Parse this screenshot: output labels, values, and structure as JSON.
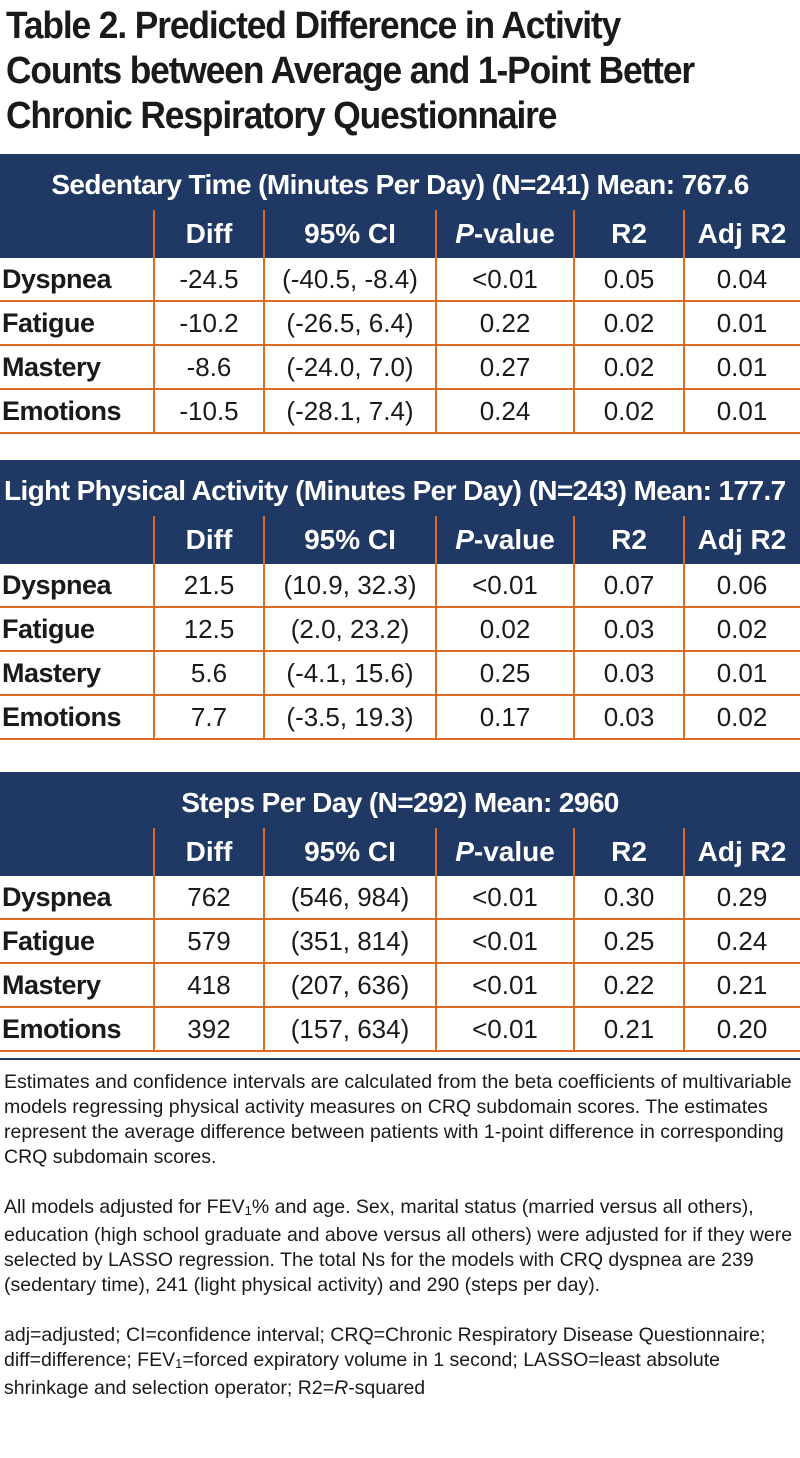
{
  "title": "Table 2. Predicted Difference in Activity Counts between Average and 1-Point Better Chronic Respiratory Questionnaire",
  "columns": {
    "diff": "Diff",
    "ci": "95% CI",
    "p_italic": "P",
    "p_rest": "-value",
    "r2": "R2",
    "adj_r2": "Adj R2"
  },
  "sections": [
    {
      "title": "Sedentary Time (Minutes Per Day) (N=241) Mean: 767.6",
      "rows": [
        {
          "label": "Dyspnea",
          "diff": "-24.5",
          "ci": "(-40.5, -8.4)",
          "p": "<0.01",
          "r2": "0.05",
          "adj_r2": "0.04"
        },
        {
          "label": "Fatigue",
          "diff": "-10.2",
          "ci": "(-26.5, 6.4)",
          "p": "0.22",
          "r2": "0.02",
          "adj_r2": "0.01"
        },
        {
          "label": "Mastery",
          "diff": "-8.6",
          "ci": "(-24.0, 7.0)",
          "p": "0.27",
          "r2": "0.02",
          "adj_r2": "0.01"
        },
        {
          "label": "Emotions",
          "diff": "-10.5",
          "ci": "(-28.1, 7.4)",
          "p": "0.24",
          "r2": "0.02",
          "adj_r2": "0.01"
        }
      ]
    },
    {
      "title": "Light Physical Activity (Minutes Per Day) (N=243) Mean: 177.7",
      "rows": [
        {
          "label": "Dyspnea",
          "diff": "21.5",
          "ci": "(10.9, 32.3)",
          "p": "<0.01",
          "r2": "0.07",
          "adj_r2": "0.06"
        },
        {
          "label": "Fatigue",
          "diff": "12.5",
          "ci": "(2.0, 23.2)",
          "p": "0.02",
          "r2": "0.03",
          "adj_r2": "0.02"
        },
        {
          "label": "Mastery",
          "diff": "5.6",
          "ci": "(-4.1, 15.6)",
          "p": "0.25",
          "r2": "0.03",
          "adj_r2": "0.01"
        },
        {
          "label": "Emotions",
          "diff": "7.7",
          "ci": "(-3.5, 19.3)",
          "p": "0.17",
          "r2": "0.03",
          "adj_r2": "0.02"
        }
      ]
    },
    {
      "title": "Steps Per Day (N=292) Mean: 2960",
      "rows": [
        {
          "label": "Dyspnea",
          "diff": "762",
          "ci": "(546, 984)",
          "p": "<0.01",
          "r2": "0.30",
          "adj_r2": "0.29"
        },
        {
          "label": "Fatigue",
          "diff": "579",
          "ci": "(351, 814)",
          "p": "<0.01",
          "r2": "0.25",
          "adj_r2": "0.24"
        },
        {
          "label": "Mastery",
          "diff": "418",
          "ci": "(207, 636)",
          "p": "<0.01",
          "r2": "0.22",
          "adj_r2": "0.21"
        },
        {
          "label": "Emotions",
          "diff": "392",
          "ci": "(157, 634)",
          "p": "<0.01",
          "r2": "0.21",
          "adj_r2": "0.20"
        }
      ]
    }
  ],
  "notes": {
    "note1": "Estimates and confidence intervals are calculated from the beta coefficients of multivariable models regressing physical activity measures on CRQ subdomain scores. The estimates represent the average difference between patients with 1-point difference in corresponding CRQ subdomain scores.",
    "note2_a": "All models adjusted for FEV",
    "note2_sub": "1",
    "note2_b": "% and age. Sex, marital status (married versus all others), education (high school graduate and above versus all others) were adjusted for if they were selected by LASSO regression. The total Ns for the models with CRQ dyspnea are 239 (sedentary time), 241 (light physical activity) and 290 (steps per day).",
    "note3_a": "adj=adjusted; CI=confidence interval; CRQ=Chronic Respiratory Disease Questionnaire; diff=difference; FEV",
    "note3_sub": "1",
    "note3_b": "=forced expiratory volume in 1 second; LASSO=least absolute shrinkage and selection operator; R2=",
    "note3_italic": "R",
    "note3_c": "-squared"
  }
}
